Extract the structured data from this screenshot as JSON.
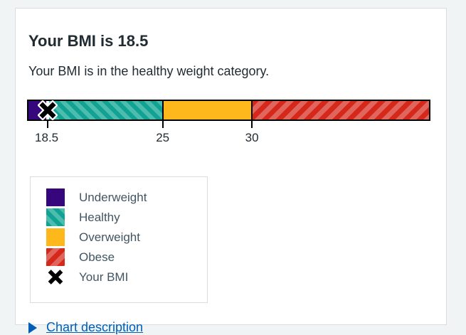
{
  "card": {
    "title": "Your BMI is 18.5",
    "subtitle": "Your BMI is in the healthy weight category.",
    "chart_description_label": "Chart description"
  },
  "colors": {
    "background": "#f0f4f5",
    "card_border": "#d8dde0",
    "underweight": "#35067c",
    "healthy_base": "#12a294",
    "healthy_stripe": "#4cbcae",
    "overweight": "#ffb81c",
    "obese_base": "#d5281b",
    "obese_stripe": "#e0655c",
    "marker": "#000000",
    "link_blue": "#005eb8",
    "heading_text": "#212b32",
    "legend_text": "#425563"
  },
  "chart_data": {
    "type": "bar",
    "title": "",
    "xlabel": "",
    "ylabel": "",
    "axis_min": 17.4,
    "axis_max": 40,
    "bmi_value": 18.5,
    "bmi_category": "healthy weight",
    "segments": [
      {
        "label": "Underweight",
        "from": 17.4,
        "to": 18.5,
        "color_key": "underweight",
        "pattern": "solid"
      },
      {
        "label": "Healthy",
        "from": 18.5,
        "to": 25,
        "color_key": "healthy",
        "pattern": "stripe-forward"
      },
      {
        "label": "Overweight",
        "from": 25,
        "to": 30,
        "color_key": "overweight",
        "pattern": "solid"
      },
      {
        "label": "Obese",
        "from": 30,
        "to": 40,
        "color_key": "obese",
        "pattern": "stripe-back"
      }
    ],
    "ticks": [
      18.5,
      25,
      30
    ],
    "tick_labels": [
      "18.5",
      "25",
      "30"
    ],
    "marker": {
      "label": "Your BMI",
      "value": 18.5,
      "symbol": "x"
    },
    "legend_position": "bottom-left",
    "grid": false
  },
  "legend": {
    "items": [
      {
        "label": "Underweight",
        "swatch": "underweight"
      },
      {
        "label": "Healthy",
        "swatch": "healthy"
      },
      {
        "label": "Overweight",
        "swatch": "overweight"
      },
      {
        "label": "Obese",
        "swatch": "obese"
      },
      {
        "label": "Your BMI",
        "swatch": "marker-x"
      }
    ]
  }
}
